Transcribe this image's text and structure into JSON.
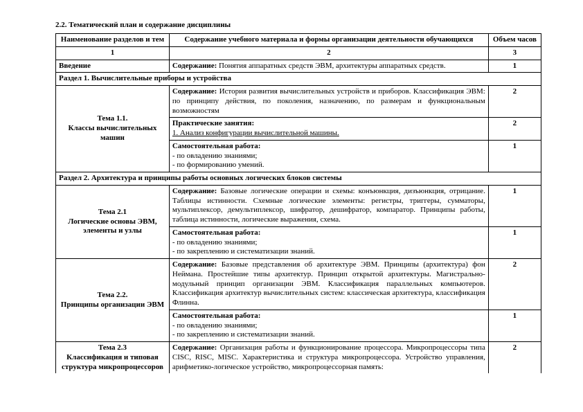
{
  "title": "2.2. Тематический план и содержание дисциплины",
  "columns": {
    "name": "Наименование разделов и тем",
    "content": "Содержание учебного материала и формы организации деятельности обучающихся",
    "hours": "Объем часов"
  },
  "num": {
    "c1": "1",
    "c2": "2",
    "c3": "3"
  },
  "intro": {
    "label": "Введение",
    "content_label": "Содержание:",
    "content": " Понятия аппаратных средств ЭВМ, архитектуры аппаратных средств.",
    "hours": "1"
  },
  "section1": "Раздел 1. Вычислительные приборы и устройства",
  "t11": {
    "name": "Тема 1.1.\nКлассы вычислительных машин",
    "c_label": "Содержание:",
    "c_text": " История развития вычислительных устройств и приборов. Классификация ЭВМ: по принципу действия, по поколения, назначению, по размерам и функциональным возможностям",
    "c_hours": "2",
    "p_label": "Практические занятия:",
    "p_text": "1. Анализ конфигурации вычислительной машины.",
    "p_hours": "2",
    "s_label": "Самостоятельная работа:",
    "s_text1": "- по овладению знаниями;",
    "s_text2": "- по формированию умений.",
    "s_hours": "1"
  },
  "section2": "Раздел 2. Архитектура и принципы работы основных логических блоков системы",
  "t21": {
    "name": "Тема 2.1\nЛогические основы ЭВМ, элементы и узлы",
    "c_label": "Содержание:",
    "c_text": " Базовые логические операции и схемы: конъюнкция, дизъюнкция, отрицание. Таблицы истинности. Схемные логические элементы: регистры, триггеры, сумматоры, мультиплексор, демультиплексор, шифратор, дешифратор, компаратор. Принципы работы, таблица истинности, логические выражения, схема.",
    "c_hours": "1",
    "s_label": "Самостоятельная работа:",
    "s_text1": "- по овладению знаниями;",
    "s_text2": "- по закреплению и систематизации знаний.",
    "s_hours": "1"
  },
  "t22": {
    "name": "Тема 2.2.\nПринципы организации ЭВМ",
    "c_label": "Содержание:",
    "c_text": " Базовые представления об архитектуре ЭВМ. Принципы (архитектура) фон Неймана. Простейшие типы архитектур. Принцип открытой архитектуры. Магистрально-модульный принцип организации ЭВМ. Классификация параллельных компьютеров. Классификация архитектур вычислительных систем: классическая архитектура, классификация Флинна.",
    "c_hours": "2",
    "s_label": "Самостоятельная работа:",
    "s_text1": "- по овладению знаниями;",
    "s_text2": "- по закреплению и систематизации знаний.",
    "s_hours": "1"
  },
  "t23": {
    "name": "Тема 2.3\nКлассификация и типовая структура микропроцессоров",
    "c_label": "Содержание:",
    "c_text": " Организация работы и функционирование процессора. Микропроцессоры типа CISC, RISC, MISC. Характеристика и структура микропроцессора. Устройство управления, арифметико-логическое устройство, микропроцессорная память:",
    "c_hours": "2"
  }
}
